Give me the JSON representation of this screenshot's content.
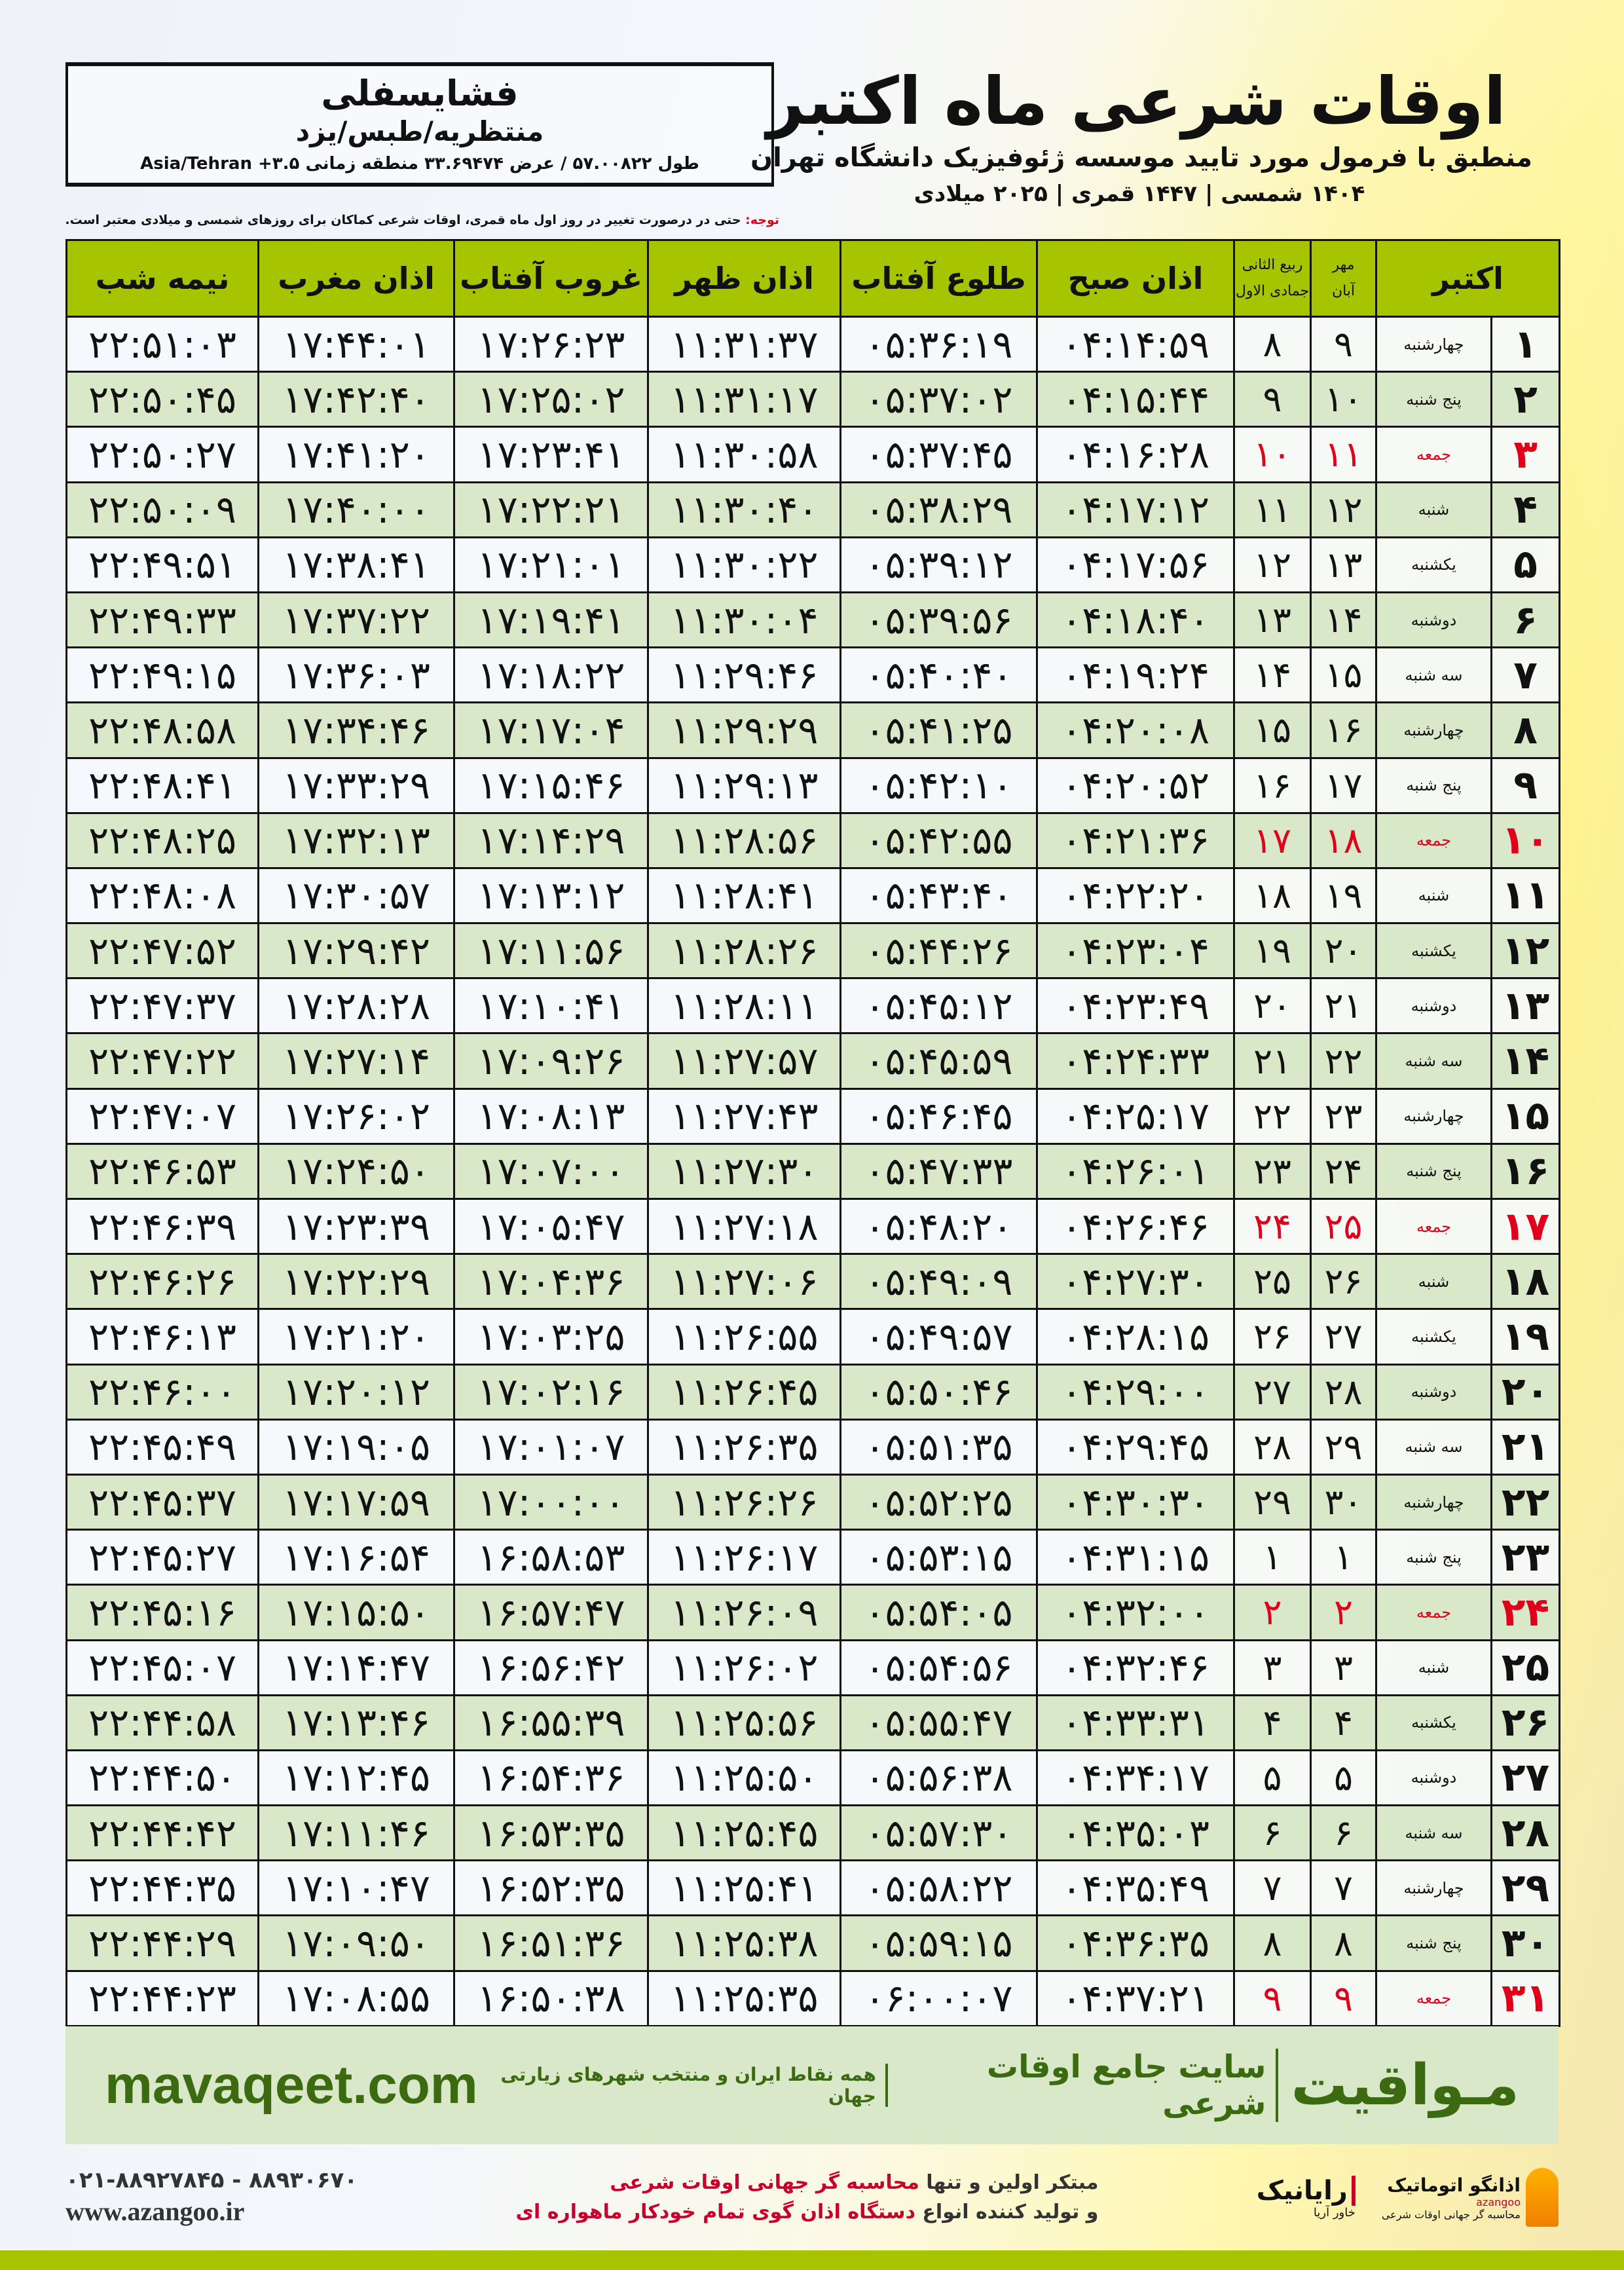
{
  "location": {
    "name": "فشایسفلی",
    "region": "منتظریه/طبس/یزد",
    "coords": "طول ۵۷.۰۰۸۲۲ / عرض ۳۳.۶۹۴۷۴ منطقه زمانی ۳.۵+ Asia/Tehran"
  },
  "title": {
    "main": "اوقات شرعی ماه اکتبر",
    "subtitle": "منطبق با فرمول مورد تایید موسسه ژئوفیزیک دانشگاه تهران",
    "years": "۱۴۰۴ شمسی | ۱۴۴۷ قمری | ۲۰۲۵ میلادی"
  },
  "note": {
    "label": "توجه:",
    "text": " حتی در درصورت تغییر در روز اول ماه قمری، اوقات شرعی کماکان برای روزهای شمسی و میلادی معتبر است."
  },
  "headers": {
    "month": "اکتبر",
    "shamsi_top": "مهر",
    "shamsi_bottom": "آبان",
    "qamari_top": "ربیع الثانی",
    "qamari_bottom": "جمادی الاول",
    "fajr": "اذان صبح",
    "sunrise": "طلوع آفتاب",
    "dhuhr": "اذان ظهر",
    "sunset": "غروب آفتاب",
    "maghrib": "اذان مغرب",
    "midnight": "نیمه شب"
  },
  "colors": {
    "header": "#a6c400",
    "row_alt": "#d9e8c8",
    "friday": "#e0001b",
    "brand": "#3c6a10"
  },
  "rows": [
    [
      "۱",
      "چهارشنبه",
      "۹",
      "۸",
      "۰۴:۱۴:۵۹",
      "۰۵:۳۶:۱۹",
      "۱۱:۳۱:۳۷",
      "۱۷:۲۶:۲۳",
      "۱۷:۴۴:۰۱",
      "۲۲:۵۱:۰۳"
    ],
    [
      "۲",
      "پنج شنبه",
      "۱۰",
      "۹",
      "۰۴:۱۵:۴۴",
      "۰۵:۳۷:۰۲",
      "۱۱:۳۱:۱۷",
      "۱۷:۲۵:۰۲",
      "۱۷:۴۲:۴۰",
      "۲۲:۵۰:۴۵"
    ],
    [
      "۳",
      "جمعه",
      "۱۱",
      "۱۰",
      "۰۴:۱۶:۲۸",
      "۰۵:۳۷:۴۵",
      "۱۱:۳۰:۵۸",
      "۱۷:۲۳:۴۱",
      "۱۷:۴۱:۲۰",
      "۲۲:۵۰:۲۷"
    ],
    [
      "۴",
      "شنبه",
      "۱۲",
      "۱۱",
      "۰۴:۱۷:۱۲",
      "۰۵:۳۸:۲۹",
      "۱۱:۳۰:۴۰",
      "۱۷:۲۲:۲۱",
      "۱۷:۴۰:۰۰",
      "۲۲:۵۰:۰۹"
    ],
    [
      "۵",
      "یکشنبه",
      "۱۳",
      "۱۲",
      "۰۴:۱۷:۵۶",
      "۰۵:۳۹:۱۲",
      "۱۱:۳۰:۲۲",
      "۱۷:۲۱:۰۱",
      "۱۷:۳۸:۴۱",
      "۲۲:۴۹:۵۱"
    ],
    [
      "۶",
      "دوشنبه",
      "۱۴",
      "۱۳",
      "۰۴:۱۸:۴۰",
      "۰۵:۳۹:۵۶",
      "۱۱:۳۰:۰۴",
      "۱۷:۱۹:۴۱",
      "۱۷:۳۷:۲۲",
      "۲۲:۴۹:۳۳"
    ],
    [
      "۷",
      "سه شنبه",
      "۱۵",
      "۱۴",
      "۰۴:۱۹:۲۴",
      "۰۵:۴۰:۴۰",
      "۱۱:۲۹:۴۶",
      "۱۷:۱۸:۲۲",
      "۱۷:۳۶:۰۳",
      "۲۲:۴۹:۱۵"
    ],
    [
      "۸",
      "چهارشنبه",
      "۱۶",
      "۱۵",
      "۰۴:۲۰:۰۸",
      "۰۵:۴۱:۲۵",
      "۱۱:۲۹:۲۹",
      "۱۷:۱۷:۰۴",
      "۱۷:۳۴:۴۶",
      "۲۲:۴۸:۵۸"
    ],
    [
      "۹",
      "پنج شنبه",
      "۱۷",
      "۱۶",
      "۰۴:۲۰:۵۲",
      "۰۵:۴۲:۱۰",
      "۱۱:۲۹:۱۳",
      "۱۷:۱۵:۴۶",
      "۱۷:۳۳:۲۹",
      "۲۲:۴۸:۴۱"
    ],
    [
      "۱۰",
      "جمعه",
      "۱۸",
      "۱۷",
      "۰۴:۲۱:۳۶",
      "۰۵:۴۲:۵۵",
      "۱۱:۲۸:۵۶",
      "۱۷:۱۴:۲۹",
      "۱۷:۳۲:۱۳",
      "۲۲:۴۸:۲۵"
    ],
    [
      "۱۱",
      "شنبه",
      "۱۹",
      "۱۸",
      "۰۴:۲۲:۲۰",
      "۰۵:۴۳:۴۰",
      "۱۱:۲۸:۴۱",
      "۱۷:۱۳:۱۲",
      "۱۷:۳۰:۵۷",
      "۲۲:۴۸:۰۸"
    ],
    [
      "۱۲",
      "یکشنبه",
      "۲۰",
      "۱۹",
      "۰۴:۲۳:۰۴",
      "۰۵:۴۴:۲۶",
      "۱۱:۲۸:۲۶",
      "۱۷:۱۱:۵۶",
      "۱۷:۲۹:۴۲",
      "۲۲:۴۷:۵۲"
    ],
    [
      "۱۳",
      "دوشنبه",
      "۲۱",
      "۲۰",
      "۰۴:۲۳:۴۹",
      "۰۵:۴۵:۱۲",
      "۱۱:۲۸:۱۱",
      "۱۷:۱۰:۴۱",
      "۱۷:۲۸:۲۸",
      "۲۲:۴۷:۳۷"
    ],
    [
      "۱۴",
      "سه شنبه",
      "۲۲",
      "۲۱",
      "۰۴:۲۴:۳۳",
      "۰۵:۴۵:۵۹",
      "۱۱:۲۷:۵۷",
      "۱۷:۰۹:۲۶",
      "۱۷:۲۷:۱۴",
      "۲۲:۴۷:۲۲"
    ],
    [
      "۱۵",
      "چهارشنبه",
      "۲۳",
      "۲۲",
      "۰۴:۲۵:۱۷",
      "۰۵:۴۶:۴۵",
      "۱۱:۲۷:۴۳",
      "۱۷:۰۸:۱۳",
      "۱۷:۲۶:۰۲",
      "۲۲:۴۷:۰۷"
    ],
    [
      "۱۶",
      "پنج شنبه",
      "۲۴",
      "۲۳",
      "۰۴:۲۶:۰۱",
      "۰۵:۴۷:۳۳",
      "۱۱:۲۷:۳۰",
      "۱۷:۰۷:۰۰",
      "۱۷:۲۴:۵۰",
      "۲۲:۴۶:۵۳"
    ],
    [
      "۱۷",
      "جمعه",
      "۲۵",
      "۲۴",
      "۰۴:۲۶:۴۶",
      "۰۵:۴۸:۲۰",
      "۱۱:۲۷:۱۸",
      "۱۷:۰۵:۴۷",
      "۱۷:۲۳:۳۹",
      "۲۲:۴۶:۳۹"
    ],
    [
      "۱۸",
      "شنبه",
      "۲۶",
      "۲۵",
      "۰۴:۲۷:۳۰",
      "۰۵:۴۹:۰۹",
      "۱۱:۲۷:۰۶",
      "۱۷:۰۴:۳۶",
      "۱۷:۲۲:۲۹",
      "۲۲:۴۶:۲۶"
    ],
    [
      "۱۹",
      "یکشنبه",
      "۲۷",
      "۲۶",
      "۰۴:۲۸:۱۵",
      "۰۵:۴۹:۵۷",
      "۱۱:۲۶:۵۵",
      "۱۷:۰۳:۲۵",
      "۱۷:۲۱:۲۰",
      "۲۲:۴۶:۱۳"
    ],
    [
      "۲۰",
      "دوشنبه",
      "۲۸",
      "۲۷",
      "۰۴:۲۹:۰۰",
      "۰۵:۵۰:۴۶",
      "۱۱:۲۶:۴۵",
      "۱۷:۰۲:۱۶",
      "۱۷:۲۰:۱۲",
      "۲۲:۴۶:۰۰"
    ],
    [
      "۲۱",
      "سه شنبه",
      "۲۹",
      "۲۸",
      "۰۴:۲۹:۴۵",
      "۰۵:۵۱:۳۵",
      "۱۱:۲۶:۳۵",
      "۱۷:۰۱:۰۷",
      "۱۷:۱۹:۰۵",
      "۲۲:۴۵:۴۹"
    ],
    [
      "۲۲",
      "چهارشنبه",
      "۳۰",
      "۲۹",
      "۰۴:۳۰:۳۰",
      "۰۵:۵۲:۲۵",
      "۱۱:۲۶:۲۶",
      "۱۷:۰۰:۰۰",
      "۱۷:۱۷:۵۹",
      "۲۲:۴۵:۳۷"
    ],
    [
      "۲۳",
      "پنج شنبه",
      "۱",
      "۱",
      "۰۴:۳۱:۱۵",
      "۰۵:۵۳:۱۵",
      "۱۱:۲۶:۱۷",
      "۱۶:۵۸:۵۳",
      "۱۷:۱۶:۵۴",
      "۲۲:۴۵:۲۷"
    ],
    [
      "۲۴",
      "جمعه",
      "۲",
      "۲",
      "۰۴:۳۲:۰۰",
      "۰۵:۵۴:۰۵",
      "۱۱:۲۶:۰۹",
      "۱۶:۵۷:۴۷",
      "۱۷:۱۵:۵۰",
      "۲۲:۴۵:۱۶"
    ],
    [
      "۲۵",
      "شنبه",
      "۳",
      "۳",
      "۰۴:۳۲:۴۶",
      "۰۵:۵۴:۵۶",
      "۱۱:۲۶:۰۲",
      "۱۶:۵۶:۴۲",
      "۱۷:۱۴:۴۷",
      "۲۲:۴۵:۰۷"
    ],
    [
      "۲۶",
      "یکشنبه",
      "۴",
      "۴",
      "۰۴:۳۳:۳۱",
      "۰۵:۵۵:۴۷",
      "۱۱:۲۵:۵۶",
      "۱۶:۵۵:۳۹",
      "۱۷:۱۳:۴۶",
      "۲۲:۴۴:۵۸"
    ],
    [
      "۲۷",
      "دوشنبه",
      "۵",
      "۵",
      "۰۴:۳۴:۱۷",
      "۰۵:۵۶:۳۸",
      "۱۱:۲۵:۵۰",
      "۱۶:۵۴:۳۶",
      "۱۷:۱۲:۴۵",
      "۲۲:۴۴:۵۰"
    ],
    [
      "۲۸",
      "سه شنبه",
      "۶",
      "۶",
      "۰۴:۳۵:۰۳",
      "۰۵:۵۷:۳۰",
      "۱۱:۲۵:۴۵",
      "۱۶:۵۳:۳۵",
      "۱۷:۱۱:۴۶",
      "۲۲:۴۴:۴۲"
    ],
    [
      "۲۹",
      "چهارشنبه",
      "۷",
      "۷",
      "۰۴:۳۵:۴۹",
      "۰۵:۵۸:۲۲",
      "۱۱:۲۵:۴۱",
      "۱۶:۵۲:۳۵",
      "۱۷:۱۰:۴۷",
      "۲۲:۴۴:۳۵"
    ],
    [
      "۳۰",
      "پنج شنبه",
      "۸",
      "۸",
      "۰۴:۳۶:۳۵",
      "۰۵:۵۹:۱۵",
      "۱۱:۲۵:۳۸",
      "۱۶:۵۱:۳۶",
      "۱۷:۰۹:۵۰",
      "۲۲:۴۴:۲۹"
    ],
    [
      "۳۱",
      "جمعه",
      "۹",
      "۹",
      "۰۴:۳۷:۲۱",
      "۰۶:۰۰:۰۷",
      "۱۱:۲۵:۳۵",
      "۱۶:۵۰:۳۸",
      "۱۷:۰۸:۵۵",
      "۲۲:۴۴:۲۳"
    ]
  ],
  "band": {
    "brand": "مـواقیت",
    "tagline": "سایت جامع اوقات شرعی",
    "sub": "همه نقاط ایران و منتخب شهرهای زیارتی جهان",
    "site": "mavaqeet.com"
  },
  "footer": {
    "phone": "۰۲۱-۸۸۹۲۷۸۴۵ - ۸۸۹۳۰۶۷۰",
    "web": "www.azangoo.ir",
    "promo1a": "مبتکر اولین و تنها ",
    "promo1b": "محاسبه گر جهانی اوقات شرعی",
    "promo2a": "و تولید کننده انواع ",
    "promo2b": "دستگاه اذان گوی تمام خودکار ماهواره ای",
    "logo1": "اذانگو اتوماتیک",
    "logo1_sub": "محاسبه گر جهانی اوقات شرعی",
    "logo1_en": "azangoo",
    "logo2": "رایانیک",
    "logo2_sub": "خاور آریا"
  }
}
